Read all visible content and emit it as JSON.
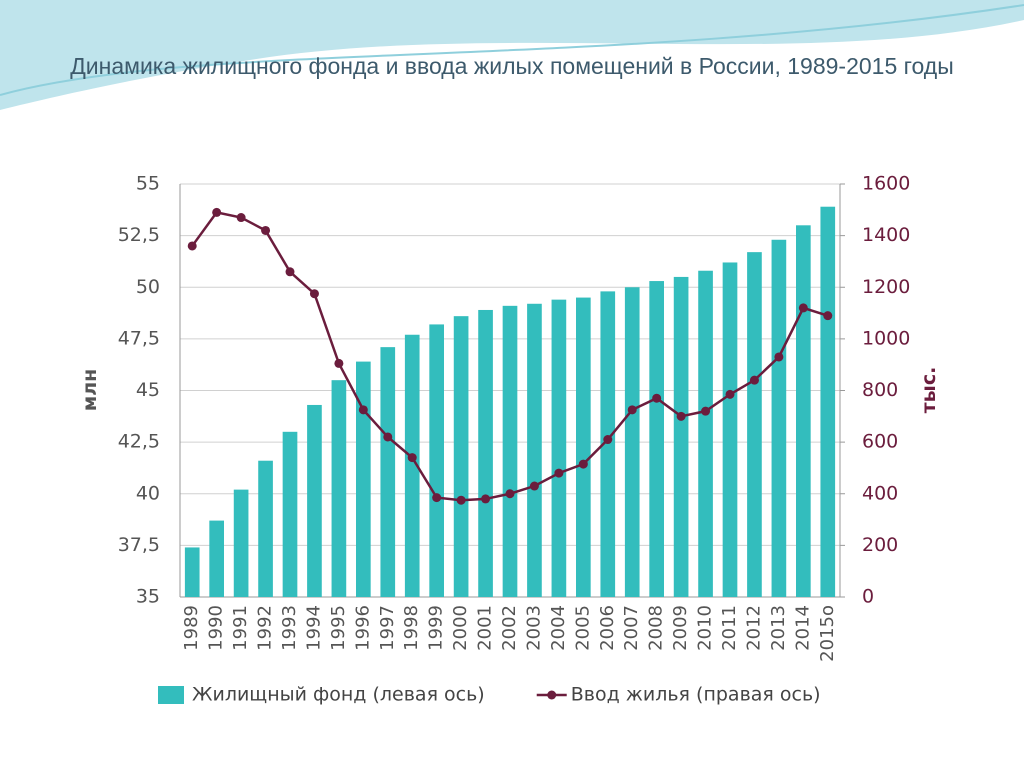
{
  "chart_data": {
    "type": "bar",
    "title": "Динамика жилищного фонда и ввода жилых помещений в России, 1989-2015 годы",
    "y_label": "млн",
    "y2_label": "тыс.",
    "categories": [
      "1989",
      "1990",
      "1991",
      "1992",
      "1993",
      "1994",
      "1995",
      "1996",
      "1997",
      "1998",
      "1999",
      "2000",
      "2001",
      "2002",
      "2003",
      "2004",
      "2005",
      "2006",
      "2007",
      "2008",
      "2009",
      "2010",
      "2011",
      "2012",
      "2013",
      "2014",
      "2015о"
    ],
    "series": [
      {
        "name": "Жилищный фонд (левая ось)",
        "type": "bar",
        "color": "#33bdbd",
        "values": [
          37.4,
          38.7,
          40.2,
          41.6,
          43.0,
          44.3,
          45.5,
          46.4,
          47.1,
          47.7,
          48.2,
          48.6,
          48.9,
          49.1,
          49.2,
          49.4,
          49.5,
          49.8,
          50.0,
          50.3,
          50.5,
          50.8,
          51.2,
          51.7,
          52.3,
          53.0,
          53.9
        ]
      },
      {
        "name": "Ввод жилья (правая ось)",
        "type": "line",
        "axis": "y2",
        "color": "#6b1d3d",
        "values": [
          1360,
          1490,
          1470,
          1420,
          1260,
          1175,
          905,
          725,
          620,
          540,
          385,
          375,
          380,
          400,
          430,
          480,
          515,
          610,
          725,
          770,
          700,
          720,
          785,
          840,
          930,
          1120,
          1090
        ]
      }
    ],
    "ylim": [
      35,
      55
    ],
    "yticks": [
      35,
      {
        "value": 37.5,
        "label": "37,5"
      },
      40,
      {
        "value": 42.5,
        "label": "42,5"
      },
      45,
      {
        "value": 47.5,
        "label": "47,5"
      },
      50,
      {
        "value": 52.5,
        "label": "52,5"
      },
      55
    ],
    "y2lim": [
      0,
      1600
    ],
    "y2ticks": [
      0,
      200,
      400,
      600,
      800,
      1000,
      1200,
      1400,
      1600
    ],
    "grid": true,
    "legend": "bottom"
  }
}
